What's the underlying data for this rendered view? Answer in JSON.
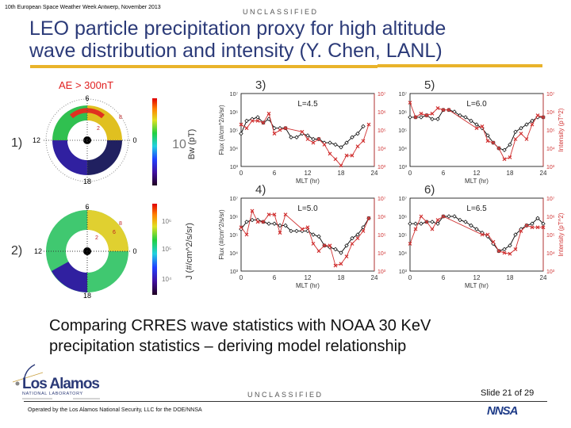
{
  "header": {
    "conference": "10th European Space Weather Week Antwerp, November 2013",
    "classification": "UNCLASSIFIED",
    "title_line1": "LEO particle precipitation proxy for high altitude",
    "title_line2": "wave distribution and intensity (Y. Chen, LANL)"
  },
  "colors": {
    "title": "#2b3a78",
    "accent_rule": "#e9b32a",
    "flux_series": "#000000",
    "intensity_series": "#d03030"
  },
  "figure": {
    "condition": "AE > 300nT",
    "polar_panels": [
      {
        "label": "1)",
        "mlt_labels": [
          "6",
          "12",
          "0",
          "18"
        ],
        "l_labels": [
          "2",
          "8"
        ],
        "colorbar_label": "Bw (pT)",
        "colorbar_ticks": [
          "10"
        ]
      },
      {
        "label": "2)",
        "mlt_labels": [
          "6",
          "12",
          "0",
          "18"
        ],
        "l_labels": [
          "2",
          "6",
          "8"
        ],
        "colorbar_label": "J (#/cm^2/s/sr)",
        "colorbar_ticks": [
          "10⁶",
          "10⁵",
          "10⁴"
        ]
      }
    ]
  },
  "chart_data": [
    {
      "type": "line",
      "panel": "3)",
      "annotation": "L=4.5",
      "xlabel": "MLT (hr)",
      "ylabel": "Flux (#/cm^2/s/sr)",
      "y2label": "",
      "xlim": [
        0,
        24
      ],
      "xticks": [
        "0",
        "6",
        "12",
        "18",
        "24"
      ],
      "yscale": "log",
      "ylim": [
        1000,
        10000000
      ],
      "yticks": [
        "10³",
        "10⁴",
        "10⁵",
        "10⁶",
        "10⁷"
      ],
      "series": [
        {
          "axis": "left",
          "color": "#000000",
          "x": [
            0,
            1,
            2,
            3,
            4,
            5,
            6,
            7,
            8,
            9,
            10,
            11,
            12,
            13,
            14,
            15,
            16,
            17,
            18,
            19,
            20,
            21,
            22
          ],
          "log10_y": [
            4.8,
            5.5,
            5.6,
            5.7,
            5.4,
            5.6,
            5.1,
            5.1,
            5.1,
            4.6,
            4.6,
            4.8,
            4.7,
            4.5,
            4.5,
            4.3,
            4.3,
            4.2,
            4.05,
            4.3,
            4.6,
            4.8,
            5.2
          ]
        },
        {
          "axis": "right",
          "color": "#d03030",
          "x": [
            0,
            1,
            2,
            3,
            4,
            5,
            6,
            7,
            8,
            11,
            12,
            13,
            14,
            15,
            16,
            17,
            18,
            19,
            20,
            21,
            22,
            23
          ],
          "log10_y": [
            5.3,
            5.1,
            5.5,
            5.5,
            5.4,
            5.9,
            4.8,
            5.0,
            5.1,
            4.9,
            4.5,
            4.3,
            4.5,
            4.2,
            3.7,
            3.4,
            3.05,
            3.6,
            3.6,
            4.1,
            4.4,
            5.3
          ]
        }
      ]
    },
    {
      "type": "line",
      "panel": "5)",
      "annotation": "L=6.0",
      "xlabel": "MLT (hr)",
      "ylabel": "",
      "y2label": "Intensity (pT^2)",
      "xlim": [
        0,
        24
      ],
      "xticks": [
        "0",
        "6",
        "12",
        "18",
        "24"
      ],
      "yscale": "log",
      "ylim": [
        1000,
        10000000
      ],
      "yticks": [
        "10³",
        "10⁴",
        "10⁵",
        "10⁶",
        "10⁷"
      ],
      "series": [
        {
          "axis": "left",
          "color": "#000000",
          "x": [
            0,
            1,
            2,
            3,
            4,
            5,
            6,
            7,
            8,
            9,
            10,
            11,
            12,
            13,
            14,
            15,
            16,
            17,
            18,
            19,
            20,
            21,
            22,
            23,
            24
          ],
          "log10_y": [
            5.7,
            5.7,
            5.7,
            5.8,
            5.6,
            5.6,
            6.1,
            6.1,
            6.0,
            5.8,
            5.7,
            5.5,
            5.3,
            5.1,
            4.7,
            4.3,
            4.0,
            3.9,
            4.2,
            4.9,
            5.1,
            5.3,
            5.5,
            5.7,
            5.7
          ]
        },
        {
          "axis": "right",
          "color": "#d03030",
          "x": [
            0,
            1,
            2,
            3,
            4,
            5,
            6,
            7,
            12,
            13,
            14,
            15,
            16,
            17,
            18,
            19,
            20,
            21,
            22,
            23,
            24
          ],
          "log10_y": [
            6.5,
            5.7,
            5.9,
            5.8,
            5.9,
            6.2,
            6.1,
            6.1,
            5.1,
            5.2,
            4.4,
            4.3,
            4.0,
            3.4,
            3.5,
            4.5,
            4.8,
            4.5,
            5.3,
            5.8,
            5.7
          ]
        }
      ]
    },
    {
      "type": "line",
      "panel": "4)",
      "annotation": "L=5.0",
      "xlabel": "MLT (hr)",
      "ylabel": "Flux (#/cm^2/s/sr)",
      "y2label": "",
      "xlim": [
        0,
        24
      ],
      "xticks": [
        "0",
        "6",
        "12",
        "18",
        "24"
      ],
      "yscale": "log",
      "ylim": [
        1000,
        10000000
      ],
      "yticks": [
        "10³",
        "10⁴",
        "10⁵",
        "10⁶",
        "10⁷"
      ],
      "series": [
        {
          "axis": "left",
          "color": "#000000",
          "x": [
            0,
            1,
            2,
            3,
            4,
            5,
            6,
            7,
            8,
            9,
            10,
            11,
            12,
            13,
            14,
            15,
            16,
            17,
            18,
            19,
            20,
            21,
            22,
            23
          ],
          "log10_y": [
            5.3,
            5.7,
            5.8,
            5.8,
            5.7,
            5.6,
            5.6,
            5.5,
            5.5,
            5.2,
            5.2,
            5.2,
            5.2,
            5.0,
            4.9,
            4.4,
            4.3,
            4.2,
            4.0,
            4.4,
            4.8,
            5.0,
            5.4,
            5.9
          ]
        },
        {
          "axis": "right",
          "color": "#d03030",
          "x": [
            0,
            1,
            2,
            3,
            4,
            5,
            6,
            7,
            8,
            11,
            12,
            13,
            14,
            15,
            16,
            17,
            18,
            19,
            20,
            21,
            22,
            23
          ],
          "log10_y": [
            5.4,
            5.0,
            6.3,
            5.7,
            5.7,
            6.1,
            6.1,
            5.1,
            6.1,
            5.3,
            5.4,
            4.5,
            4.1,
            4.4,
            4.4,
            3.3,
            3.4,
            3.8,
            4.5,
            4.8,
            5.2,
            5.9
          ]
        }
      ]
    },
    {
      "type": "line",
      "panel": "6)",
      "annotation": "L=6.5",
      "xlabel": "MLT (hr)",
      "ylabel": "",
      "y2label": "Intensity (pT^2)",
      "xlim": [
        0,
        24
      ],
      "xticks": [
        "0",
        "6",
        "12",
        "18",
        "24"
      ],
      "yscale": "log",
      "ylim": [
        1000,
        10000000
      ],
      "yticks": [
        "10³",
        "10⁴",
        "10⁵",
        "10⁶",
        "10⁷"
      ],
      "series": [
        {
          "axis": "left",
          "color": "#000000",
          "x": [
            0,
            1,
            2,
            3,
            4,
            5,
            6,
            7,
            8,
            9,
            10,
            11,
            12,
            13,
            14,
            15,
            16,
            17,
            18,
            19,
            20,
            21,
            22,
            23,
            24
          ],
          "log10_y": [
            5.6,
            5.6,
            5.6,
            5.7,
            5.7,
            5.6,
            6.0,
            6.0,
            6.0,
            5.8,
            5.7,
            5.5,
            5.3,
            5.1,
            4.9,
            4.5,
            4.1,
            4.2,
            4.4,
            5.0,
            5.3,
            5.5,
            5.6,
            5.9,
            5.6
          ]
        },
        {
          "axis": "right",
          "color": "#d03030",
          "x": [
            0,
            1,
            2,
            3,
            4,
            5,
            6,
            13,
            14,
            15,
            16,
            17,
            18,
            19,
            20,
            21,
            22,
            23,
            24
          ],
          "log10_y": [
            4.5,
            5.3,
            6.0,
            5.7,
            5.3,
            5.8,
            6.0,
            5.0,
            5.0,
            4.6,
            4.1,
            4.0,
            3.95,
            4.2,
            5.2,
            5.5,
            5.4,
            5.4,
            5.4
          ]
        }
      ]
    }
  ],
  "caption_line1": "Comparing CRRES wave statistics with NOAA 30 KeV",
  "caption_line2": "precipitation statistics – deriving model relationship",
  "footer": {
    "classification": "UNCLASSIFIED",
    "slide_number": "Slide 21  of 29",
    "operated_by": "Operated by the Los Alamos National Security, LLC for the DOE/NNSA",
    "logo_text": "Los Alamos",
    "logo_subtext": "NATIONAL LABORATORY",
    "logo_est": "EST 1943",
    "nnsa_logo": "NNSA"
  }
}
